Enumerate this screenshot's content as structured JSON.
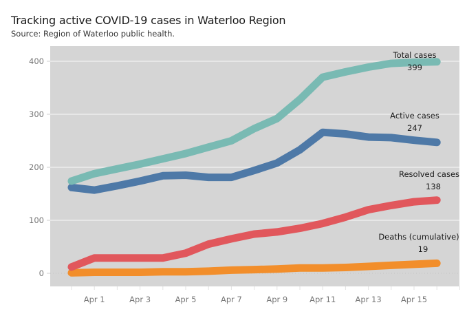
{
  "chart_data": {
    "type": "line",
    "title": "Tracking active COVID-19 cases in Waterloo Region",
    "subtitle": "Source: Region of Waterloo public health.",
    "xlabel": "",
    "ylabel": "",
    "x": [
      "Mar 31",
      "Apr 1",
      "Apr 2",
      "Apr 3",
      "Apr 4",
      "Apr 5",
      "Apr 6",
      "Apr 7",
      "Apr 8",
      "Apr 9",
      "Apr 10",
      "Apr 11",
      "Apr 12",
      "Apr 13",
      "Apr 14",
      "Apr 15",
      "Apr 16"
    ],
    "x_tick_labels": [
      "Apr 1",
      "Apr 3",
      "Apr 5",
      "Apr 7",
      "Apr 9",
      "Apr 11",
      "Apr 13",
      "Apr 15"
    ],
    "y_ticks": [
      0,
      100,
      200,
      300,
      400
    ],
    "ylim": [
      -25,
      430
    ],
    "grid": true,
    "series": [
      {
        "name": "Total cases",
        "label_value": "399",
        "color": "#79bab3",
        "values": [
          174,
          188,
          197,
          206,
          216,
          226,
          238,
          250,
          273,
          292,
          328,
          370,
          380,
          389,
          396,
          398,
          399
        ]
      },
      {
        "name": "Active cases",
        "label_value": "247",
        "color": "#4e79a7",
        "values": [
          162,
          157,
          165,
          174,
          184,
          185,
          181,
          181,
          194,
          208,
          233,
          266,
          263,
          257,
          256,
          251,
          247
        ]
      },
      {
        "name": "Resolved cases",
        "label_value": "138",
        "color": "#e1575c",
        "values": [
          12,
          29,
          29,
          29,
          29,
          38,
          55,
          65,
          74,
          78,
          85,
          94,
          106,
          120,
          128,
          135,
          138
        ]
      },
      {
        "name": "Deaths (cumulative)",
        "label_value": "19",
        "color": "#f28e2b",
        "values": [
          1,
          2,
          2,
          2,
          3,
          3,
          4,
          6,
          7,
          8,
          10,
          10,
          11,
          13,
          15,
          17,
          19
        ]
      }
    ]
  }
}
